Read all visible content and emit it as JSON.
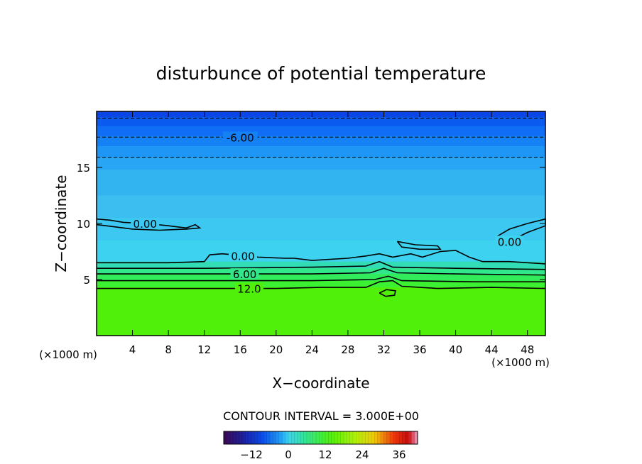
{
  "chart_data": {
    "type": "heatmap",
    "title": "disturbunce of potential temperature",
    "xlabel": "X−coordinate",
    "ylabel": "Z−coordinate",
    "x_unit": "(×1000 m)",
    "y_unit": "(×1000 m)",
    "xlim": [
      0,
      50
    ],
    "ylim": [
      0,
      20
    ],
    "x_ticks": [
      4,
      8,
      12,
      16,
      20,
      24,
      28,
      32,
      36,
      40,
      44,
      48
    ],
    "x_tick_labels": [
      "4",
      "8",
      "12",
      "16",
      "20",
      "24",
      "28",
      "32",
      "36",
      "40",
      "44",
      "48"
    ],
    "y_ticks": [
      5,
      10,
      15
    ],
    "y_tick_labels": [
      "5",
      "10",
      "15"
    ],
    "grid": false,
    "field_layers": [
      {
        "z_from": 19.5,
        "z_to": 20,
        "value": -9,
        "color": "#0a46e6"
      },
      {
        "z_from": 18.7,
        "z_to": 19.5,
        "value": -8,
        "color": "#0a5af0"
      },
      {
        "z_from": 17.8,
        "z_to": 18.7,
        "value": -7,
        "color": "#0f6ef5"
      },
      {
        "z_from": 16.9,
        "z_to": 17.8,
        "value": -6,
        "color": "#1482f5"
      },
      {
        "z_from": 15.9,
        "z_to": 16.9,
        "value": -5,
        "color": "#1e96f5"
      },
      {
        "z_from": 14.8,
        "z_to": 15.9,
        "value": -4,
        "color": "#28a5f5"
      },
      {
        "z_from": 12.5,
        "z_to": 14.8,
        "value": -3,
        "color": "#32b4f0"
      },
      {
        "z_from": 10.5,
        "z_to": 12.5,
        "value": -2,
        "color": "#3cbef0"
      },
      {
        "z_from": 8.5,
        "z_to": 10.5,
        "value": -1,
        "color": "#3cc8f0"
      },
      {
        "z_from": 6.6,
        "z_to": 8.5,
        "value": 0,
        "color": "#3cd2f0"
      },
      {
        "z_from": 6.0,
        "z_to": 6.6,
        "value": 3,
        "color": "#32dcb4"
      },
      {
        "z_from": 5.5,
        "z_to": 6.0,
        "value": 6,
        "color": "#32e68c"
      },
      {
        "z_from": 4.9,
        "z_to": 5.5,
        "value": 9,
        "color": "#32eb5a"
      },
      {
        "z_from": 4.3,
        "z_to": 4.9,
        "value": 12,
        "color": "#3cf032"
      },
      {
        "z_from": 0.0,
        "z_to": 4.3,
        "value": 15,
        "color": "#50f00a"
      }
    ],
    "contours": [
      {
        "level": -6.0,
        "style": "dashed",
        "label": "-6.00",
        "label_x": 16.0,
        "points": [
          [
            0,
            17.7
          ],
          [
            50,
            17.7
          ]
        ]
      },
      {
        "level": -3.0,
        "style": "dashed",
        "label": "",
        "points": [
          [
            0,
            15.9
          ],
          [
            50,
            15.9
          ]
        ]
      },
      {
        "level": -9.0,
        "style": "dashed",
        "label": "",
        "points": [
          [
            0,
            19.4
          ],
          [
            50,
            19.4
          ]
        ]
      },
      {
        "level": 0.0,
        "style": "solid",
        "label": "0.00",
        "label_x": 5.4,
        "points": [
          [
            0,
            10.4
          ],
          [
            1.5,
            10.3
          ],
          [
            3,
            10.1
          ],
          [
            5.5,
            10.0
          ],
          [
            8,
            9.8
          ],
          [
            10,
            9.6
          ],
          [
            11,
            9.9
          ],
          [
            11.5,
            9.6
          ],
          [
            10,
            9.5
          ],
          [
            7,
            9.4
          ],
          [
            4,
            9.5
          ],
          [
            2,
            9.7
          ],
          [
            0,
            9.9
          ]
        ]
      },
      {
        "level": 0.0,
        "style": "solid",
        "label": "0.00",
        "label_x": 16.3,
        "points": [
          [
            0,
            6.5
          ],
          [
            8,
            6.5
          ],
          [
            12,
            6.6
          ],
          [
            12.6,
            7.2
          ],
          [
            14,
            7.3
          ],
          [
            18,
            7.0
          ],
          [
            21,
            6.9
          ],
          [
            22,
            6.9
          ],
          [
            24,
            6.7
          ],
          [
            28,
            6.9
          ],
          [
            30,
            7.1
          ],
          [
            31.5,
            7.3
          ],
          [
            33,
            7.0
          ],
          [
            35,
            7.3
          ],
          [
            36.3,
            7.0
          ],
          [
            38.3,
            7.5
          ],
          [
            40,
            7.6
          ],
          [
            41.5,
            7.0
          ],
          [
            43,
            6.6
          ],
          [
            46,
            6.6
          ],
          [
            48,
            6.5
          ],
          [
            50,
            6.4
          ]
        ]
      },
      {
        "level": 0.0,
        "style": "solid",
        "label": "",
        "label_x": 0,
        "points": [
          [
            33.5,
            8.4
          ],
          [
            35.5,
            8.1
          ],
          [
            38,
            8.0
          ],
          [
            38.3,
            7.7
          ],
          [
            36,
            7.7
          ],
          [
            34,
            7.9
          ],
          [
            33.5,
            8.4
          ]
        ]
      },
      {
        "level": 0.0,
        "style": "solid",
        "label": "0.00",
        "label_x": 46.0,
        "points": [
          [
            45,
            8.0
          ],
          [
            48,
            9.2
          ],
          [
            50,
            9.8
          ],
          [
            50,
            10.4
          ],
          [
            48,
            10.0
          ],
          [
            46,
            9.5
          ],
          [
            44.5,
            8.8
          ],
          [
            45,
            8.0
          ]
        ]
      },
      {
        "level": 3.0,
        "style": "solid",
        "label": "",
        "label_x": 0,
        "points": [
          [
            0,
            6.0
          ],
          [
            12,
            6.0
          ],
          [
            24,
            6.1
          ],
          [
            30,
            6.2
          ],
          [
            31.5,
            6.6
          ],
          [
            33,
            6.1
          ],
          [
            40,
            6.0
          ],
          [
            50,
            5.9
          ]
        ]
      },
      {
        "level": 6.0,
        "style": "solid",
        "label": "6.00",
        "label_x": 16.5,
        "points": [
          [
            0,
            5.5
          ],
          [
            12,
            5.5
          ],
          [
            24,
            5.5
          ],
          [
            30.5,
            5.6
          ],
          [
            32,
            6.0
          ],
          [
            33.5,
            5.6
          ],
          [
            40,
            5.5
          ],
          [
            50,
            5.4
          ]
        ]
      },
      {
        "level": 9.0,
        "style": "solid",
        "label": "",
        "label_x": 0,
        "points": [
          [
            0,
            4.9
          ],
          [
            12,
            4.9
          ],
          [
            24,
            4.9
          ],
          [
            31,
            5.0
          ],
          [
            32.5,
            5.3
          ],
          [
            34,
            4.9
          ],
          [
            42,
            4.8
          ],
          [
            50,
            4.8
          ]
        ]
      },
      {
        "level": 12.0,
        "style": "solid",
        "label": "12.0",
        "label_x": 17.0,
        "points": [
          [
            0,
            4.2
          ],
          [
            10,
            4.2
          ],
          [
            20,
            4.2
          ],
          [
            25,
            4.3
          ],
          [
            30,
            4.3
          ],
          [
            31.5,
            4.8
          ],
          [
            33,
            4.9
          ],
          [
            34,
            4.4
          ],
          [
            38,
            4.2
          ],
          [
            44,
            4.3
          ],
          [
            50,
            4.2
          ]
        ]
      },
      {
        "level": 15.0,
        "style": "solid",
        "label": "",
        "label_x": 0,
        "points": [
          [
            31.5,
            3.8
          ],
          [
            32.2,
            3.5
          ],
          [
            33.2,
            3.6
          ],
          [
            33.3,
            4.0
          ],
          [
            32.3,
            4.1
          ],
          [
            31.5,
            3.8
          ]
        ]
      }
    ],
    "contour_interval_label": "CONTOUR INTERVAL = 3.000E+00",
    "colorbar": {
      "min": -21,
      "max": 42,
      "tick_values": [
        -12,
        0,
        12,
        24,
        36
      ],
      "tick_labels": [
        "−12",
        "0",
        "12",
        "24",
        "36"
      ],
      "color_stops": [
        {
          "value": -21,
          "color": "#3c0a50"
        },
        {
          "value": -15,
          "color": "#1e1e9a"
        },
        {
          "value": -9,
          "color": "#0a46e6"
        },
        {
          "value": -3,
          "color": "#1e96f5"
        },
        {
          "value": 0,
          "color": "#3cd2f0"
        },
        {
          "value": 6,
          "color": "#32e68c"
        },
        {
          "value": 14,
          "color": "#50f00a"
        },
        {
          "value": 22,
          "color": "#b4f00a"
        },
        {
          "value": 28,
          "color": "#f0c80a"
        },
        {
          "value": 34,
          "color": "#f03c0a"
        },
        {
          "value": 39,
          "color": "#c80a0a"
        },
        {
          "value": 42,
          "color": "#f0a0c8"
        }
      ]
    }
  }
}
